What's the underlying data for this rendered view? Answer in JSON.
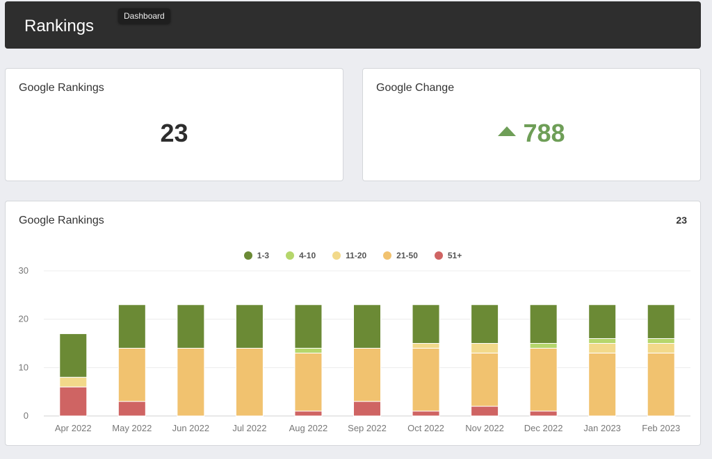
{
  "header": {
    "title": "Rankings",
    "tooltip": "Dashboard"
  },
  "cards": {
    "rankings": {
      "title": "Google Rankings",
      "value": "23"
    },
    "change": {
      "title": "Google Change",
      "value": "788",
      "direction": "up",
      "color": "#6e9e57"
    }
  },
  "chart_card": {
    "title": "Google Rankings",
    "count": "23"
  },
  "chart_data": {
    "type": "bar",
    "stacked": true,
    "categories": [
      "Apr 2022",
      "May 2022",
      "Jun 2022",
      "Jul 2022",
      "Aug 2022",
      "Sep 2022",
      "Oct 2022",
      "Nov 2022",
      "Dec 2022",
      "Jan 2023",
      "Feb 2023"
    ],
    "series": [
      {
        "name": "51+",
        "color": "#cf6463",
        "values": [
          6,
          3,
          0,
          0,
          1,
          3,
          1,
          2,
          1,
          0,
          0
        ]
      },
      {
        "name": "21-50",
        "color": "#f1c26f",
        "values": [
          0,
          11,
          14,
          14,
          12,
          11,
          13,
          11,
          13,
          13,
          13
        ]
      },
      {
        "name": "11-20",
        "color": "#f2d98a",
        "values": [
          2,
          0,
          0,
          0,
          0,
          0,
          1,
          2,
          0,
          2,
          2
        ]
      },
      {
        "name": "4-10",
        "color": "#b5d66b",
        "values": [
          0,
          0,
          0,
          0,
          1,
          0,
          0,
          0,
          1,
          1,
          1
        ]
      },
      {
        "name": "1-3",
        "color": "#6b8a35",
        "values": [
          9,
          9,
          9,
          9,
          9,
          9,
          8,
          8,
          8,
          7,
          7
        ]
      }
    ],
    "legend_order": [
      "1-3",
      "4-10",
      "11-20",
      "21-50",
      "51+"
    ],
    "ylim": [
      0,
      30
    ],
    "yticks": [
      0,
      10,
      20,
      30
    ],
    "grid": true,
    "legend_position": "top"
  }
}
